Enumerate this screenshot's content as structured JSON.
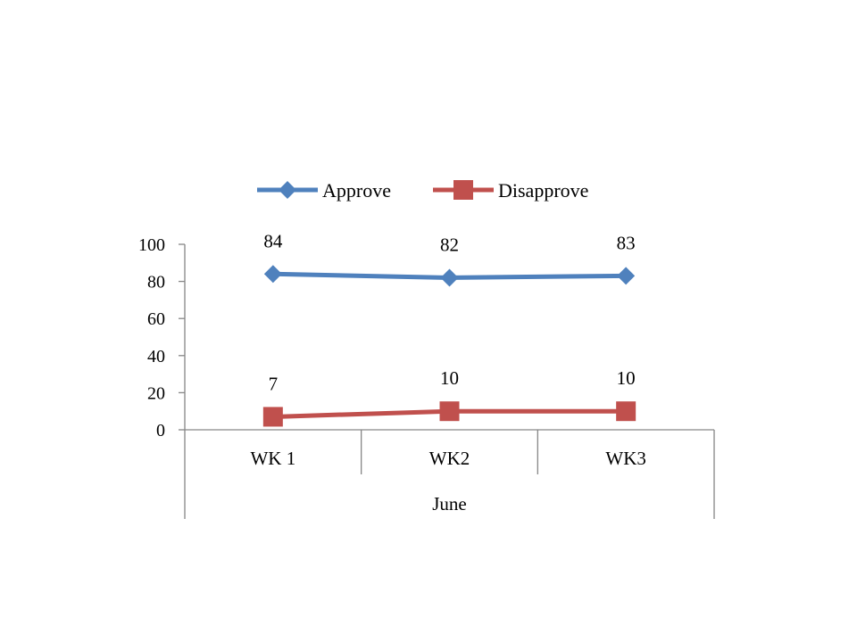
{
  "chart_data": {
    "type": "line",
    "categories": [
      "WK 1",
      "WK2",
      "WK3"
    ],
    "group_label": "June",
    "series": [
      {
        "name": "Approve",
        "values": [
          84,
          82,
          83
        ],
        "color": "#4F81BD",
        "marker": "diamond"
      },
      {
        "name": "Disapprove",
        "values": [
          7,
          10,
          10
        ],
        "color": "#C0504D",
        "marker": "square"
      }
    ],
    "ylim": [
      0,
      100
    ],
    "yticks": [
      0,
      20,
      40,
      60,
      80,
      100
    ],
    "grid": false,
    "legend_position": "top",
    "data_labels": true,
    "axis_color": "#868686"
  }
}
